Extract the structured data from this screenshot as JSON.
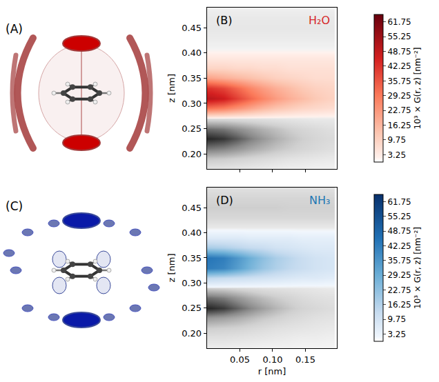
{
  "renders": [
    {
      "label": "(A)"
    },
    {
      "label": "(C)"
    }
  ],
  "chart_data": [
    {
      "type": "heatmap",
      "label": "(B)",
      "title": "H₂O",
      "color": "#d62728",
      "y_label": "z [nm]",
      "xlim": [
        0,
        0.198
      ],
      "xticks": [
        0.05,
        {
          "value": 0.1,
          "label": "0.10"
        },
        0.15
      ],
      "ylim": [
        0.17,
        0.49
      ],
      "yticks": [
        {
          "value": 0.2,
          "label": "0.20"
        },
        0.25,
        {
          "value": 0.3,
          "label": "0.30"
        },
        0.35,
        {
          "value": 0.4,
          "label": "0.40"
        },
        0.45
      ],
      "tick_labels": "y",
      "r": [
        0.005,
        0.025,
        0.045,
        0.065,
        0.085,
        0.105,
        0.125,
        0.145,
        0.165,
        0.185
      ],
      "z": [
        0.17,
        0.19,
        0.21,
        0.23,
        0.25,
        0.27,
        0.29,
        0.31,
        0.33,
        0.35,
        0.37,
        0.39,
        0.41,
        0.43,
        0.45,
        0.47,
        0.49
      ],
      "series": [
        {
          "color": "grey",
          "cells": [
            [
              10,
              10,
              9,
              8,
              7,
              6,
              5,
              5,
              4,
              4
            ],
            [
              22,
              21,
              19,
              17,
              15,
              13,
              11,
              10,
              9,
              8
            ],
            [
              42,
              40,
              36,
              31,
              27,
              23,
              20,
              17,
              15,
              13
            ],
            [
              60,
              57,
              50,
              42,
              35,
              29,
              24,
              20,
              17,
              15
            ],
            [
              45,
              43,
              38,
              33,
              28,
              24,
              20,
              17,
              15,
              13
            ],
            [
              15,
              15,
              14,
              13,
              12,
              11,
              10,
              9,
              8,
              8
            ],
            [
              0,
              0,
              0,
              0,
              0,
              0,
              0,
              0,
              0,
              0
            ],
            [
              0,
              0,
              0,
              0,
              0,
              0,
              0,
              0,
              0,
              0
            ],
            [
              0,
              0,
              0,
              0,
              0,
              0,
              0,
              0,
              0,
              0
            ],
            [
              0,
              0,
              0,
              0,
              0,
              0,
              0,
              0,
              0,
              0
            ],
            [
              0,
              0,
              0,
              0,
              0,
              0,
              0,
              0,
              0,
              0
            ],
            [
              0,
              0,
              0,
              0,
              0,
              0,
              0,
              0,
              0,
              0
            ],
            [
              4,
              4,
              4,
              4,
              4,
              4,
              4,
              4,
              4,
              4
            ],
            [
              7,
              7,
              7,
              7,
              7,
              7,
              7,
              7,
              7,
              7
            ],
            [
              9,
              9,
              9,
              9,
              9,
              9,
              9,
              9,
              9,
              9
            ],
            [
              8,
              8,
              8,
              8,
              8,
              8,
              8,
              8,
              8,
              8
            ],
            [
              5,
              5,
              5,
              5,
              5,
              5,
              5,
              5,
              5,
              5
            ]
          ]
        },
        {
          "color": "red",
          "cells": [
            [
              0,
              0,
              0,
              0,
              0,
              0,
              0,
              0,
              0,
              0
            ],
            [
              0,
              0,
              0,
              0,
              0,
              0,
              0,
              0,
              0,
              0
            ],
            [
              0,
              0,
              0,
              0,
              0,
              0,
              0,
              0,
              0,
              0
            ],
            [
              0,
              0,
              0,
              0,
              0,
              0,
              0,
              0,
              0,
              0
            ],
            [
              0,
              0,
              0,
              0,
              0,
              0,
              0,
              0,
              0,
              0
            ],
            [
              0,
              0,
              0,
              0,
              0,
              0,
              0,
              0,
              0,
              0
            ],
            [
              30,
              28,
              24,
              20,
              16,
              13,
              11,
              9,
              8,
              7
            ],
            [
              50,
              47,
              40,
              33,
              27,
              22,
              18,
              15,
              12,
              10
            ],
            [
              42,
              39,
              33,
              27,
              22,
              18,
              15,
              12,
              10,
              9
            ],
            [
              20,
              18,
              16,
              14,
              12,
              10,
              9,
              8,
              7,
              7
            ],
            [
              9,
              9,
              8,
              8,
              7,
              7,
              6,
              6,
              6,
              6
            ],
            [
              4,
              4,
              4,
              4,
              4,
              4,
              4,
              4,
              4,
              4
            ],
            [
              0,
              0,
              0,
              0,
              0,
              0,
              0,
              0,
              0,
              0
            ],
            [
              0,
              0,
              0,
              0,
              0,
              0,
              0,
              0,
              0,
              0
            ],
            [
              0,
              0,
              0,
              0,
              0,
              0,
              0,
              0,
              0,
              0
            ],
            [
              0,
              0,
              0,
              0,
              0,
              0,
              0,
              0,
              0,
              0
            ],
            [
              0,
              0,
              0,
              0,
              0,
              0,
              0,
              0,
              0,
              0
            ]
          ]
        }
      ],
      "colorbar": {
        "title": "10³ × G(r, z) [nm⁻²]",
        "range": [
          0,
          65
        ],
        "ticks": [
          3.25,
          9.75,
          16.25,
          22.75,
          29.25,
          35.75,
          42.25,
          48.75,
          55.25,
          61.75
        ]
      }
    },
    {
      "type": "heatmap",
      "label": "(D)",
      "title": "NH₃",
      "color": "#1f77b4",
      "x_label": "r [nm]",
      "y_label": "z [nm]",
      "xlim": [
        0,
        0.198
      ],
      "xticks": [
        0.05,
        {
          "value": 0.1,
          "label": "0.10"
        },
        0.15
      ],
      "ylim": [
        0.17,
        0.49
      ],
      "yticks": [
        {
          "value": 0.2,
          "label": "0.20"
        },
        0.25,
        {
          "value": 0.3,
          "label": "0.30"
        },
        0.35,
        {
          "value": 0.4,
          "label": "0.40"
        },
        0.45
      ],
      "r": [
        0.005,
        0.025,
        0.045,
        0.065,
        0.085,
        0.105,
        0.125,
        0.145,
        0.165,
        0.185
      ],
      "z": [
        0.17,
        0.19,
        0.21,
        0.23,
        0.25,
        0.27,
        0.29,
        0.31,
        0.33,
        0.35,
        0.37,
        0.39,
        0.41,
        0.43,
        0.45,
        0.47,
        0.49
      ],
      "series": [
        {
          "color": "grey",
          "cells": [
            [
              6,
              6,
              5,
              5,
              4,
              4,
              4,
              3,
              3,
              3
            ],
            [
              12,
              12,
              11,
              10,
              9,
              8,
              7,
              6,
              6,
              5
            ],
            [
              20,
              19,
              18,
              16,
              14,
              12,
              11,
              10,
              9,
              8
            ],
            [
              35,
              33,
              30,
              26,
              22,
              19,
              16,
              14,
              12,
              11
            ],
            [
              60,
              56,
              48,
              40,
              33,
              27,
              22,
              18,
              16,
              14
            ],
            [
              45,
              42,
              36,
              30,
              25,
              21,
              18,
              15,
              13,
              12
            ],
            [
              20,
              19,
              17,
              15,
              13,
              12,
              11,
              10,
              9,
              8
            ],
            [
              0,
              0,
              0,
              0,
              0,
              0,
              0,
              0,
              0,
              0
            ],
            [
              0,
              0,
              0,
              0,
              0,
              0,
              0,
              0,
              0,
              0
            ],
            [
              0,
              0,
              0,
              0,
              0,
              0,
              0,
              0,
              0,
              0
            ],
            [
              0,
              0,
              0,
              0,
              0,
              0,
              0,
              0,
              0,
              0
            ],
            [
              0,
              0,
              0,
              0,
              0,
              0,
              0,
              0,
              0,
              0
            ],
            [
              8,
              8,
              8,
              8,
              8,
              8,
              8,
              8,
              8,
              8
            ],
            [
              16,
              16,
              16,
              16,
              16,
              16,
              16,
              16,
              16,
              16
            ],
            [
              20,
              20,
              20,
              20,
              20,
              20,
              19,
              19,
              19,
              19
            ],
            [
              17,
              17,
              17,
              17,
              17,
              17,
              17,
              17,
              17,
              17
            ],
            [
              12,
              12,
              12,
              12,
              12,
              12,
              12,
              12,
              12,
              12
            ]
          ]
        },
        {
          "color": "blue",
          "cells": [
            [
              0,
              0,
              0,
              0,
              0,
              0,
              0,
              0,
              0,
              0
            ],
            [
              0,
              0,
              0,
              0,
              0,
              0,
              0,
              0,
              0,
              0
            ],
            [
              0,
              0,
              0,
              0,
              0,
              0,
              0,
              0,
              0,
              0
            ],
            [
              0,
              0,
              0,
              0,
              0,
              0,
              0,
              0,
              0,
              0
            ],
            [
              0,
              0,
              0,
              0,
              0,
              0,
              0,
              0,
              0,
              0
            ],
            [
              0,
              0,
              0,
              0,
              0,
              0,
              0,
              0,
              0,
              0
            ],
            [
              0,
              0,
              0,
              0,
              0,
              0,
              0,
              0,
              0,
              0
            ],
            [
              14,
              13,
              12,
              11,
              10,
              9,
              8,
              7,
              7,
              6
            ],
            [
              42,
              40,
              34,
              27,
              21,
              17,
              14,
              12,
              10,
              9
            ],
            [
              44,
              42,
              36,
              29,
              23,
              18,
              15,
              12,
              10,
              9
            ],
            [
              18,
              17,
              15,
              13,
              12,
              10,
              9,
              8,
              7,
              7
            ],
            [
              7,
              7,
              7,
              6,
              6,
              6,
              6,
              5,
              5,
              5
            ],
            [
              0,
              0,
              0,
              0,
              0,
              0,
              0,
              0,
              0,
              0
            ],
            [
              0,
              0,
              0,
              0,
              0,
              0,
              0,
              0,
              0,
              0
            ],
            [
              0,
              0,
              0,
              0,
              0,
              0,
              0,
              0,
              0,
              0
            ],
            [
              0,
              0,
              0,
              0,
              0,
              0,
              0,
              0,
              0,
              0
            ],
            [
              0,
              0,
              0,
              0,
              0,
              0,
              0,
              0,
              0,
              0
            ]
          ]
        }
      ],
      "colorbar": {
        "title": "10³ × G(r, z) [nm⁻²]",
        "range": [
          0,
          65
        ],
        "ticks": [
          3.25,
          9.75,
          16.25,
          22.75,
          29.25,
          35.75,
          42.25,
          48.75,
          55.25,
          61.75
        ]
      }
    }
  ]
}
